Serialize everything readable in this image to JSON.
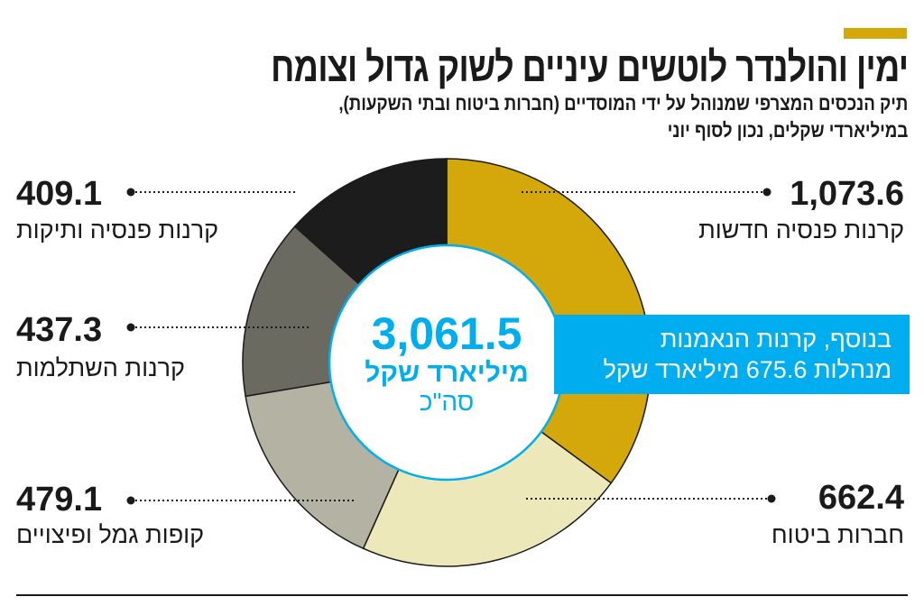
{
  "header": {
    "title": "ימין והולנדר לוטשים עיניים לשוק גדול וצומח",
    "subtitle_line1": "תיק הנכסים המצרפי שמנוהל על ידי המוסדיים (חברות ביטוח ובתי השקעות),",
    "subtitle_line2": "במיליארדי שקלים, נכון לסוף יוני",
    "accent_color": "#d4a80a"
  },
  "chart_data": {
    "type": "pie",
    "donut": true,
    "unit": "מיליארד שקל",
    "categories": [
      "קרנות פנסיה חדשות",
      "חברות ביטוח",
      "קופות גמל ופיצויים",
      "קרנות השתלמות",
      "קרנות פנסיה ותיקות"
    ],
    "values": [
      1073.6,
      662.4,
      479.1,
      437.3,
      409.1
    ],
    "value_labels": [
      "1,073.6",
      "662.4",
      "479.1",
      "437.3",
      "409.1"
    ],
    "colors": [
      "#d4a80a",
      "#ede8b9",
      "#b4b3a3",
      "#6b6a60",
      "#1c1c1c"
    ],
    "start": "top",
    "direction": "clockwise",
    "center": {
      "total": "3,061.5",
      "unit": "מיליארד שקל",
      "sum_label": "סה\"כ",
      "color": "#00aeef"
    }
  },
  "note": {
    "line1": "בנוסף, קרנות הנאמנות",
    "line2": "מנהלות 675.6 מיליארד שקל",
    "color": "#00aeef"
  }
}
